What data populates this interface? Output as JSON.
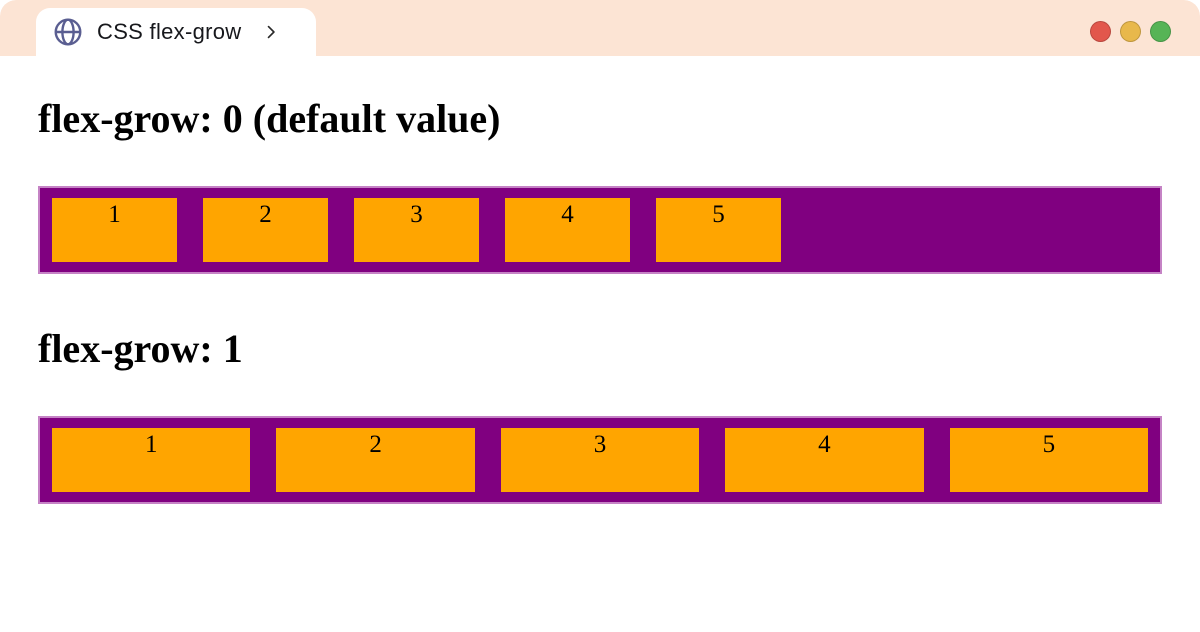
{
  "window": {
    "tab": {
      "title": "CSS flex-grow"
    },
    "traffic_lights": {
      "red": "#e2574c",
      "yellow": "#e8b84b",
      "green": "#56b456"
    }
  },
  "colors": {
    "chrome_bar": "#fce4d4",
    "container_purple": "#800080",
    "container_border": "#c583c5",
    "item_orange": "#ffa500",
    "globe_icon": "#5a5e91"
  },
  "sections": [
    {
      "heading": "flex-grow: 0 (default value)",
      "flex_grow": 0,
      "items": [
        "1",
        "2",
        "3",
        "4",
        "5"
      ]
    },
    {
      "heading": "flex-grow: 1",
      "flex_grow": 1,
      "items": [
        "1",
        "2",
        "3",
        "4",
        "5"
      ]
    }
  ]
}
